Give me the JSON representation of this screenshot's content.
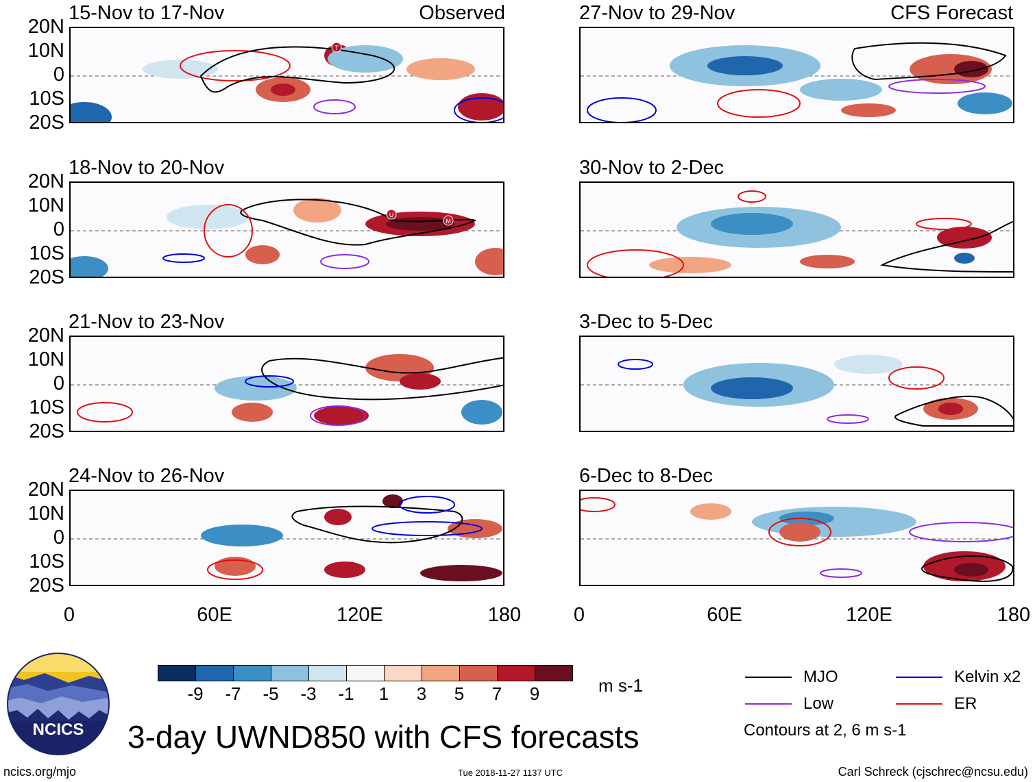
{
  "panels": [
    {
      "title": "15-Nov to 17-Nov",
      "tag": "Observed",
      "labels": [
        "T"
      ]
    },
    {
      "title": "27-Nov to 29-Nov",
      "tag": "CFS Forecast",
      "labels": []
    },
    {
      "title": "18-Nov to 20-Nov",
      "tag": "",
      "labels": [
        "U",
        "M"
      ]
    },
    {
      "title": "30-Nov to 2-Dec",
      "tag": "",
      "labels": []
    },
    {
      "title": "21-Nov to 23-Nov",
      "tag": "",
      "labels": []
    },
    {
      "title": "3-Dec to 5-Dec",
      "tag": "",
      "labels": []
    },
    {
      "title": "24-Nov to 26-Nov",
      "tag": "",
      "labels": []
    },
    {
      "title": "6-Dec to 8-Dec",
      "tag": "",
      "labels": []
    }
  ],
  "lat_labels": [
    "20N",
    "10N",
    "0",
    "10S",
    "20S"
  ],
  "lon_labels": [
    "0",
    "60E",
    "120E",
    "180"
  ],
  "colorbar": {
    "colors": [
      "#0c2e5e",
      "#1f66ad",
      "#3b8fc4",
      "#8fc2de",
      "#d1e5f0",
      "#f7f7f7",
      "#fbd8c6",
      "#f2a583",
      "#d6604d",
      "#b2182b",
      "#6a0f1f"
    ],
    "labels": [
      "-9",
      "-7",
      "-5",
      "-3",
      "-1",
      "1",
      "3",
      "5",
      "7",
      "9"
    ],
    "units": "m s-1"
  },
  "legend": {
    "items": [
      {
        "label": "MJO",
        "color": "#000000"
      },
      {
        "label": "Kelvin x2",
        "color": "#0000dd"
      },
      {
        "label": "Low",
        "color": "#8a2be2"
      },
      {
        "label": "ER",
        "color": "#e01010"
      }
    ],
    "note": "Contours at 2, 6 m s-1"
  },
  "logo": {
    "text": "NCICS"
  },
  "main_title": "3-day UWND850 with CFS forecasts",
  "footer": {
    "left": "ncics.org/mjo",
    "center": "Tue 2018-11-27 1137 UTC",
    "right": "Carl Schreck (cjschrec@ncsu.edu)"
  }
}
